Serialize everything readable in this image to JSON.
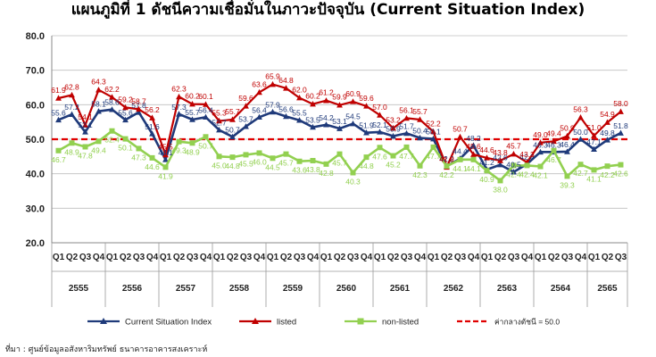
{
  "title": "แผนภูมิที่ 1 ดัชนีความเชื่อมั่นในภาวะปัจจุบัน (Current Situation Index)",
  "source": "ที่มา : ศูนย์ข้อมูลอสังหาริมทรัพย์ ธนาคารอาคารสงเคราะห์",
  "colors": {
    "current": "#1f3a7a",
    "listed": "#c00000",
    "nonlisted": "#92d050",
    "reference": "#e00000",
    "grid": "#bfbfbf"
  },
  "chart_data": {
    "type": "line",
    "ylim": [
      20,
      80
    ],
    "yticks": [
      "20.0",
      "30.0",
      "40.0",
      "50.0",
      "60.0",
      "70.0",
      "80.0"
    ],
    "grid": true,
    "legend_position": "bottom",
    "quarters": [
      "Q1",
      "Q2",
      "Q3",
      "Q4",
      "Q1",
      "Q2",
      "Q3",
      "Q4",
      "Q1",
      "Q2",
      "Q3",
      "Q4",
      "Q1",
      "Q2",
      "Q3",
      "Q4",
      "Q1",
      "Q2",
      "Q3",
      "Q4",
      "Q1",
      "Q2",
      "Q3",
      "Q4",
      "Q1",
      "Q2",
      "Q3",
      "Q4",
      "Q1",
      "Q2",
      "Q3",
      "Q4",
      "Q1",
      "Q2",
      "Q3",
      "Q4",
      "Q1",
      "Q2",
      "Q3",
      "Q4",
      "Q1",
      "Q2",
      "Q3"
    ],
    "years": [
      {
        "label": "2555",
        "count": 4
      },
      {
        "label": "2556",
        "count": 4
      },
      {
        "label": "2557",
        "count": 4
      },
      {
        "label": "2558",
        "count": 4
      },
      {
        "label": "2559",
        "count": 4
      },
      {
        "label": "2560",
        "count": 4
      },
      {
        "label": "2561",
        "count": 4
      },
      {
        "label": "2562",
        "count": 4
      },
      {
        "label": "2563",
        "count": 4
      },
      {
        "label": "2564",
        "count": 4
      },
      {
        "label": "2565",
        "count": 3
      }
    ],
    "series": [
      {
        "key": "current",
        "name": "Current Situation Index",
        "values": [
          55.6,
          57.2,
          52.1,
          58.1,
          58.6,
          55.6,
          57.8,
          51.6,
          44.1,
          57.3,
          55.7,
          56.4,
          52.7,
          50.7,
          53.7,
          56.4,
          57.9,
          56.6,
          55.5,
          53.5,
          54.2,
          53.1,
          54.5,
          51.9,
          52.1,
          50.9,
          51.7,
          50.4,
          50.1,
          42.2,
          44.4,
          48.2,
          41.2,
          42.6,
          40.5,
          42.8,
          46.3,
          46.3,
          46.4,
          50.0,
          47.1,
          49.8,
          51.8
        ],
        "labels": [
          "55.6",
          "57.2",
          "52.1",
          "58.1",
          "58.6",
          "55.6",
          "57.8",
          "51.6",
          "44.1",
          "57.3",
          "55.7",
          "56.4",
          "52.7",
          "50.7",
          "53.7",
          "56.4",
          "57.9",
          "56.6",
          "55.5",
          "53.5",
          "54.2",
          "53.1",
          "54.5",
          "51.9",
          "52.1",
          "50.9",
          "51.7",
          "50.4",
          "50.1",
          "42.2",
          "44.4",
          "48.2",
          "41.2",
          "42.6",
          "40.5",
          "42.8",
          "46.3",
          "46.3",
          "46.4",
          "50.0",
          "47.1",
          "49.8",
          "51.8"
        ]
      },
      {
        "key": "listed",
        "name": "listed",
        "values": [
          61.9,
          62.8,
          54.1,
          64.3,
          62.2,
          59.2,
          58.7,
          56.2,
          45.5,
          62.3,
          60.2,
          60.1,
          55.3,
          55.7,
          59.6,
          63.6,
          65.9,
          64.8,
          62.0,
          60.2,
          61.2,
          59.9,
          60.9,
          59.6,
          57.0,
          53.2,
          56.1,
          55.7,
          52.2,
          41.9,
          50.7,
          45.6,
          44.6,
          43.8,
          45.7,
          43.3,
          49.0,
          49.4,
          50.9,
          56.3,
          51.0,
          54.9,
          58.0
        ],
        "labels": [
          "61.9",
          "62.8",
          "54.1",
          "64.3",
          "62.2",
          "59.2",
          "58.7",
          "56.2",
          "45.5",
          "62.3",
          "60.2",
          "60.1",
          "55.3",
          "55.7",
          "59.6",
          "63.6",
          "65.9",
          "64.8",
          "62.0",
          "60.2",
          "61.2",
          "59.9",
          "60.9",
          "59.6",
          "57.0",
          "53.2",
          "56.1",
          "55.7",
          "52.2",
          "41.9",
          "50.7",
          "45.6",
          "44.6",
          "43.8",
          "45.7",
          "43.3",
          "49.0",
          "49.4",
          "50.9",
          "56.3",
          "51.0",
          "54.9",
          "58.0"
        ]
      },
      {
        "key": "nonlisted",
        "name": "non-listed",
        "values": [
          46.7,
          48.9,
          47.8,
          49.4,
          52.4,
          50.1,
          47.3,
          44.6,
          41.9,
          49.3,
          48.9,
          50.7,
          45.0,
          44.8,
          45.5,
          46.0,
          44.5,
          45.7,
          43.6,
          43.8,
          42.8,
          45.7,
          40.3,
          44.8,
          47.6,
          45.2,
          47.7,
          42.3,
          47.7,
          42.2,
          44.1,
          44.1,
          40.9,
          38.0,
          42.4,
          42.4,
          42.1,
          46.7,
          39.3,
          42.7,
          41.1,
          42.2,
          42.6
        ],
        "labels": [
          "46.7",
          "48.9",
          "47.8",
          "49.4",
          "52.4",
          "50.1",
          "47.3",
          "44.6",
          "41.9",
          "49.3",
          "48.9",
          "50.7",
          "45.0",
          "44.8",
          "45.5",
          "46.0",
          "44.5",
          "45.7",
          "43.6",
          "43.8",
          "42.8",
          "45.7",
          "40.3",
          "44.8",
          "47.6",
          "45.2",
          "47.7",
          "42.3",
          "47.7",
          "42.2",
          "44.1",
          "44.1",
          "40.9",
          "38.0",
          "42.4",
          "42.4",
          "42.1",
          "46.7",
          "39.3",
          "42.7",
          "41.1",
          "42.2",
          "42.6"
        ]
      }
    ],
    "reference_line": {
      "name": "ค่ากลางดัชนี = 50.0",
      "value": 50.0
    }
  }
}
